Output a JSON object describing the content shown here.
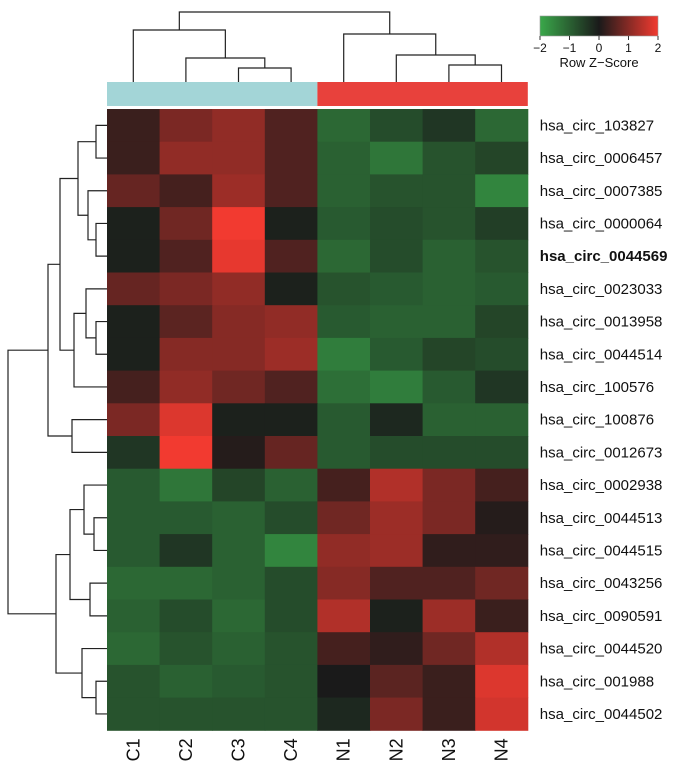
{
  "chart_data": {
    "type": "heatmap",
    "title": "",
    "xlabel": "",
    "ylabel": "",
    "columns": [
      "C1",
      "C2",
      "C3",
      "C4",
      "N1",
      "N2",
      "N3",
      "N4"
    ],
    "column_groups": [
      {
        "columns": [
          "C1",
          "C2",
          "C3",
          "C4"
        ],
        "color": "#a3d5d7"
      },
      {
        "columns": [
          "N1",
          "N2",
          "N3",
          "N4"
        ],
        "color": "#e8413c"
      }
    ],
    "rows": [
      {
        "name": "hsa_circ_103827",
        "bold": false
      },
      {
        "name": "hsa_circ_0006457",
        "bold": false
      },
      {
        "name": "hsa_circ_0007385",
        "bold": false
      },
      {
        "name": "hsa_circ_0000064",
        "bold": false
      },
      {
        "name": "hsa_circ_0044569",
        "bold": true
      },
      {
        "name": "hsa_circ_0023033",
        "bold": false
      },
      {
        "name": "hsa_circ_0013958",
        "bold": false
      },
      {
        "name": "hsa_circ_0044514",
        "bold": false
      },
      {
        "name": "hsa_circ_100576",
        "bold": false
      },
      {
        "name": "hsa_circ_100876",
        "bold": false
      },
      {
        "name": "hsa_circ_0012673",
        "bold": false
      },
      {
        "name": "hsa_circ_0002938",
        "bold": false
      },
      {
        "name": "hsa_circ_0044513",
        "bold": false
      },
      {
        "name": "hsa_circ_0044515",
        "bold": false
      },
      {
        "name": "hsa_circ_0043256",
        "bold": false
      },
      {
        "name": "hsa_circ_0090591",
        "bold": false
      },
      {
        "name": "hsa_circ_0044520",
        "bold": false
      },
      {
        "name": "hsa_circ_001988",
        "bold": false
      },
      {
        "name": "hsa_circ_0044502",
        "bold": false
      }
    ],
    "values": [
      [
        0.3,
        0.9,
        1.1,
        0.5,
        -1.1,
        -0.7,
        -0.4,
        -1.1
      ],
      [
        0.3,
        1.1,
        1.1,
        0.5,
        -1.0,
        -1.3,
        -0.8,
        -0.6
      ],
      [
        0.7,
        0.4,
        1.2,
        0.5,
        -1.0,
        -0.8,
        -0.8,
        -1.5
      ],
      [
        -0.1,
        0.8,
        2.0,
        -0.1,
        -0.9,
        -0.7,
        -0.8,
        -0.5
      ],
      [
        -0.1,
        0.5,
        1.9,
        0.5,
        -1.1,
        -0.7,
        -1.0,
        -0.8
      ],
      [
        0.7,
        0.9,
        1.1,
        -0.1,
        -0.8,
        -0.9,
        -1.0,
        -0.9
      ],
      [
        -0.1,
        0.6,
        1.0,
        1.1,
        -0.9,
        -1.0,
        -1.0,
        -0.6
      ],
      [
        -0.1,
        1.0,
        1.0,
        1.2,
        -1.4,
        -0.9,
        -0.6,
        -0.7
      ],
      [
        0.4,
        1.1,
        0.8,
        0.5,
        -1.2,
        -1.4,
        -0.9,
        -0.4
      ],
      [
        0.9,
        1.8,
        -0.1,
        -0.1,
        -0.9,
        -0.2,
        -1.0,
        -1.0
      ],
      [
        -0.4,
        2.0,
        0.1,
        0.7,
        -0.9,
        -0.7,
        -0.7,
        -0.7
      ],
      [
        -0.9,
        -1.3,
        -0.6,
        -1.0,
        0.4,
        1.4,
        0.9,
        0.4
      ],
      [
        -0.9,
        -0.9,
        -1.0,
        -0.7,
        0.8,
        1.2,
        0.9,
        0.1
      ],
      [
        -0.9,
        -0.4,
        -1.0,
        -1.5,
        1.1,
        1.2,
        0.2,
        0.2
      ],
      [
        -1.1,
        -1.1,
        -1.0,
        -0.7,
        1.0,
        0.5,
        0.5,
        0.8
      ],
      [
        -1.0,
        -0.7,
        -1.1,
        -0.7,
        1.4,
        -0.1,
        1.2,
        0.3
      ],
      [
        -1.1,
        -0.8,
        -1.0,
        -0.8,
        0.4,
        0.2,
        0.8,
        1.4
      ],
      [
        -0.8,
        -1.0,
        -0.9,
        -0.8,
        0.0,
        0.6,
        0.3,
        1.8
      ],
      [
        -0.8,
        -0.8,
        -0.8,
        -0.8,
        -0.2,
        0.9,
        0.3,
        1.7
      ]
    ],
    "scale": {
      "min": -2,
      "max": 2,
      "low_color": "#3aa84a",
      "mid_color": "#1a1a1a",
      "high_color": "#f23a30",
      "ticks": [
        "−2",
        "−1",
        "0",
        "1",
        "2"
      ],
      "label": "Row Z−Score"
    }
  }
}
